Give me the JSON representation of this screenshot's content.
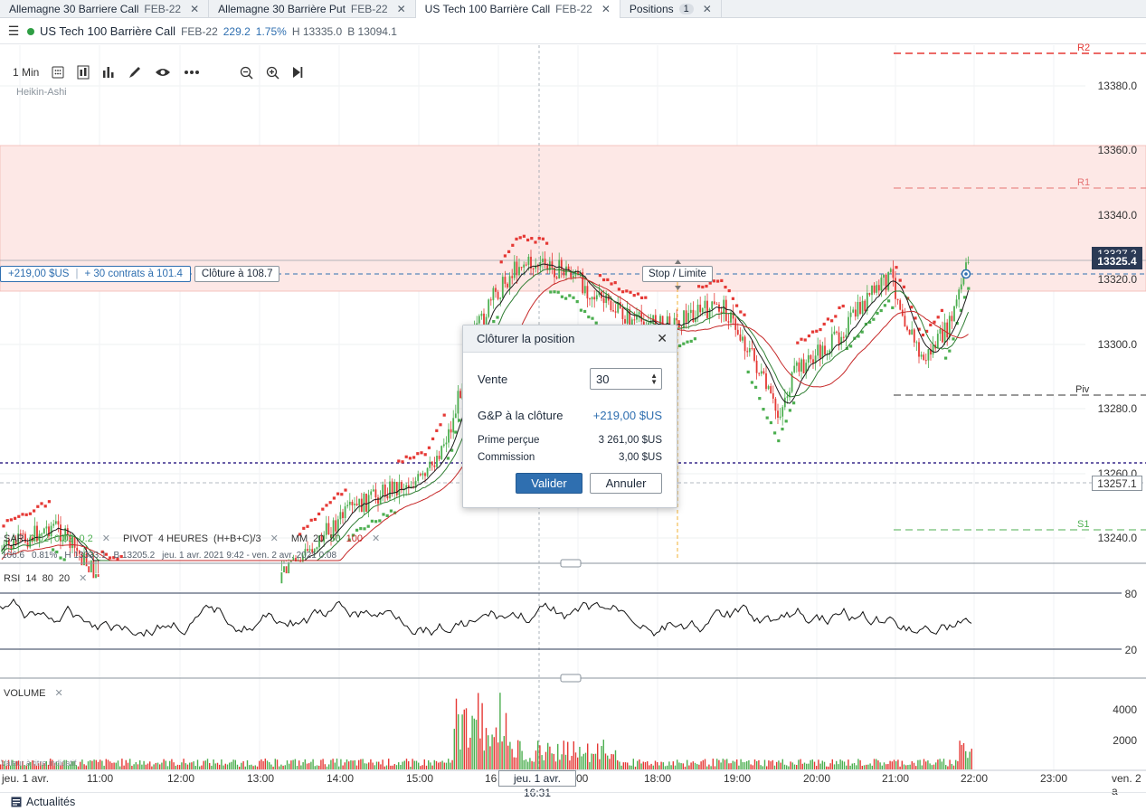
{
  "tabs": [
    {
      "label": "Allemagne 30 Barriere Call",
      "sub": "FEB-22",
      "close": "✕"
    },
    {
      "label": "Allemagne 30 Barrière Put",
      "sub": "FEB-22",
      "close": "✕"
    },
    {
      "label": "US Tech 100 Barrière Call",
      "sub": "FEB-22",
      "close": "✕"
    },
    {
      "label": "Positions",
      "badge": "1",
      "close": "✕"
    }
  ],
  "header": {
    "title": "US Tech 100 Barrière Call",
    "expiry": "FEB-22",
    "price": "229.2",
    "change": "1.75%",
    "high": "H 13335.0",
    "low": "B 13094.1",
    "status_color": "#2f9e44"
  },
  "toolbar": {
    "interval": "1 Min",
    "chart_style": "Heikin-Ashi",
    "icons": [
      "calculator-icon",
      "candle-type-icon",
      "indicators-icon",
      "draw-icon",
      "visibility-icon",
      "more-icon",
      "zoom-out-icon",
      "zoom-in-icon",
      "scroll-to-end-icon"
    ]
  },
  "price_axis": {
    "labels": [
      "13380.0",
      "13360.0",
      "13340.0",
      "13320.0",
      "13300.0",
      "13280.0",
      "13260.0",
      "13240.0"
    ],
    "current_price": "13325.4",
    "cursor_price": "13257.1",
    "hidden_price": "13327.2"
  },
  "pivots": {
    "r2": "R2",
    "r1": "R1",
    "piv": "Piv",
    "s1": "S1"
  },
  "position": {
    "pl": "+219,00 $US",
    "contracts": "+ 30 contrats à 101.4",
    "close_label": "Clôture à 108.7",
    "stop_label": "Stop / Limite"
  },
  "indicators": {
    "sar": {
      "name": "SAR",
      "p1": "0.02",
      "p2": "0.02",
      "p3": "0.2",
      "close": "✕"
    },
    "pivot": {
      "name": "PIVOT",
      "p1": "4 HEURES",
      "p2": "(H+B+C)/3",
      "close": "✕"
    },
    "mm": {
      "name": "MM",
      "p1": "20",
      "p2": "50",
      "p3": "100",
      "close": "✕"
    },
    "ohlc": {
      "o": "106.6",
      "c": "0.81%",
      "h": "H 13333.1",
      "l": "B 13205.2",
      "range": "jeu. 1 avr. 2021 9:42 - ven. 2 avr. 2021 0:08"
    },
    "rsi": {
      "name": "RSI",
      "p1": "14",
      "p2": "80",
      "p3": "20",
      "close": "✕",
      "upper": "80",
      "lower": "20"
    },
    "volume": {
      "name": "VOLUME",
      "close": "✕",
      "l1": "4000",
      "l2": "2000",
      "note": "Valeur à titre indicatif"
    }
  },
  "time_axis": {
    "labels": [
      "jeu. 1 avr.",
      "11:00",
      "12:00",
      "13:00",
      "14:00",
      "15:00",
      "16",
      "00",
      "18:00",
      "19:00",
      "20:00",
      "21:00",
      "22:00",
      "23:00",
      "ven. 2 a"
    ],
    "cursor": "jeu. 1 avr. 16:31"
  },
  "dialog": {
    "title": "Clôturer la position",
    "close": "✕",
    "sell_label": "Vente",
    "sell_value": "30",
    "pl_label": "G&P à la clôture",
    "pl_value": "+219,00 $US",
    "premium_label": "Prime perçue",
    "premium_value": "3 261,00 $US",
    "commission_label": "Commission",
    "commission_value": "3,00 $US",
    "confirm": "Valider",
    "cancel": "Annuler"
  },
  "footer": {
    "news": "Actualités"
  },
  "colors": {
    "up": "#4caf50",
    "down": "#e53935",
    "accent": "#2f6fb0",
    "band": "#fde8e6"
  }
}
